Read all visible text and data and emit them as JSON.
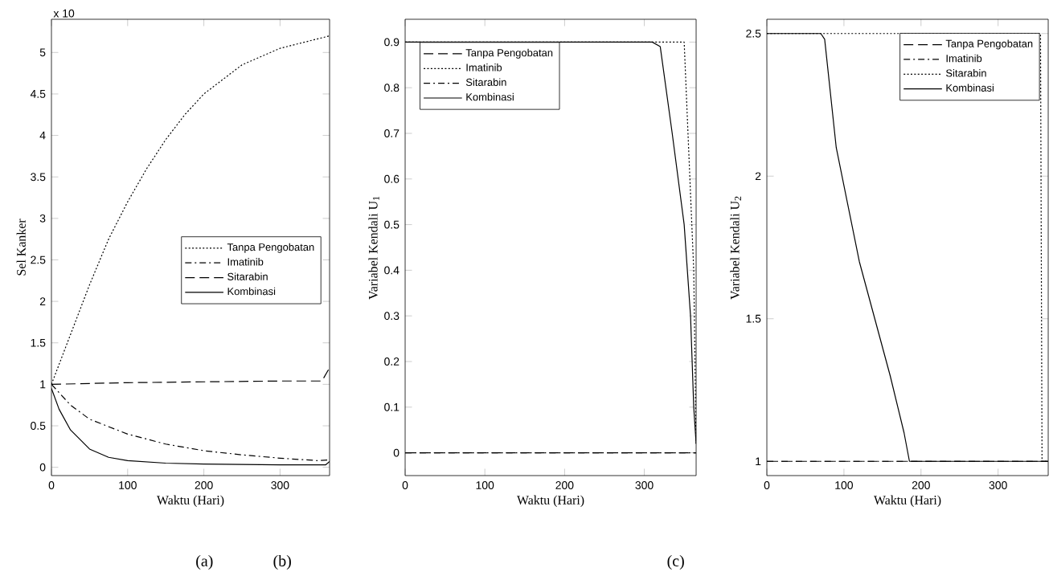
{
  "chart_data": [
    {
      "type": "line",
      "xlabel": "Waktu (Hari)",
      "ylabel": "Sel Kanker",
      "xlim": [
        0,
        365
      ],
      "ylim": [
        -0.1,
        5.4
      ],
      "xticks": [
        0,
        100,
        200,
        300
      ],
      "yticks": [
        0,
        0.5,
        1,
        1.5,
        2,
        2.5,
        3,
        3.5,
        4,
        4.5,
        5
      ],
      "legend": "right",
      "grid": false,
      "annotations": [
        "x 10",
        "(a)",
        "(b)"
      ],
      "series": [
        {
          "name": "Tanpa Pengobatan",
          "color": "#000000",
          "line_style": "dotted",
          "x": [
            0,
            25,
            50,
            75,
            100,
            125,
            150,
            175,
            200,
            250,
            300,
            365
          ],
          "values": [
            1,
            1.6,
            2.2,
            2.75,
            3.2,
            3.6,
            3.95,
            4.25,
            4.5,
            4.85,
            5.05,
            5.2
          ]
        },
        {
          "name": "Imatinib",
          "color": "#000000",
          "line_style": "dashdot",
          "x": [
            0,
            25,
            50,
            100,
            150,
            200,
            250,
            300,
            350,
            365
          ],
          "values": [
            1,
            0.75,
            0.58,
            0.4,
            0.28,
            0.2,
            0.15,
            0.11,
            0.08,
            0.09
          ]
        },
        {
          "name": "Sitarabin",
          "color": "#000000",
          "line_style": "dashed",
          "x": [
            0,
            100,
            200,
            300,
            355,
            365
          ],
          "values": [
            1,
            1.02,
            1.03,
            1.04,
            1.04,
            1.2
          ]
        },
        {
          "name": "Kombinasi",
          "color": "#000000",
          "line_style": "solid",
          "x": [
            0,
            10,
            25,
            50,
            75,
            100,
            150,
            200,
            300,
            360,
            365
          ],
          "values": [
            0.95,
            0.7,
            0.45,
            0.22,
            0.12,
            0.08,
            0.05,
            0.04,
            0.03,
            0.03,
            0.07
          ]
        }
      ]
    },
    {
      "type": "line",
      "xlabel": "Waktu (Hari)",
      "ylabel": "Variabel Kendali U$_{1}$",
      "xlim": [
        0,
        365
      ],
      "ylim": [
        -0.05,
        0.95
      ],
      "xticks": [
        0,
        100,
        200,
        300
      ],
      "yticks": [
        0,
        0.1,
        0.2,
        0.3,
        0.4,
        0.5,
        0.6,
        0.7,
        0.8,
        0.9
      ],
      "legend": "top left",
      "grid": false,
      "annotations": [
        "(c)"
      ],
      "series": [
        {
          "name": "Tanpa Pengobatan",
          "color": "#000000",
          "line_style": "dashed",
          "x": [
            0,
            365
          ],
          "values": [
            0,
            0
          ]
        },
        {
          "name": "Imatinib",
          "color": "#000000",
          "line_style": "dotted",
          "x": [
            0,
            310,
            350,
            362,
            365
          ],
          "values": [
            0.9,
            0.9,
            0.9,
            0.4,
            0.02
          ]
        },
        {
          "name": "Sitarabin",
          "color": "#000000",
          "line_style": "dashdot",
          "x": [
            0,
            365
          ],
          "values": [
            0,
            0
          ]
        },
        {
          "name": "Kombinasi",
          "color": "#000000",
          "line_style": "solid",
          "x": [
            0,
            310,
            320,
            335,
            350,
            358,
            362,
            365
          ],
          "values": [
            0.9,
            0.9,
            0.89,
            0.7,
            0.5,
            0.3,
            0.1,
            0.02
          ]
        }
      ]
    },
    {
      "type": "line",
      "xlabel": "Waktu (Hari)",
      "ylabel": "Variabel Kendali U$_{2}$",
      "xlim": [
        0,
        365
      ],
      "ylim": [
        0.95,
        2.55
      ],
      "xticks": [
        0,
        100,
        200,
        300
      ],
      "yticks": [
        1,
        1.5,
        2,
        2.5
      ],
      "legend": "top right",
      "grid": false,
      "series": [
        {
          "name": "Tanpa Pengobatan",
          "color": "#000000",
          "line_style": "dashed",
          "x": [
            0,
            365
          ],
          "values": [
            1,
            1
          ]
        },
        {
          "name": "Imatinib",
          "color": "#000000",
          "line_style": "dashdot",
          "x": [
            0,
            365
          ],
          "values": [
            1,
            1
          ]
        },
        {
          "name": "Sitarabin",
          "color": "#000000",
          "line_style": "dotted",
          "x": [
            0,
            355,
            357,
            365
          ],
          "values": [
            2.5,
            2.5,
            1,
            1
          ]
        },
        {
          "name": "Kombinasi",
          "color": "#000000",
          "line_style": "solid",
          "x": [
            0,
            70,
            75,
            90,
            105,
            120,
            140,
            160,
            178,
            185,
            365
          ],
          "values": [
            2.5,
            2.5,
            2.48,
            2.1,
            1.9,
            1.7,
            1.5,
            1.3,
            1.1,
            1.0,
            1.0
          ]
        }
      ]
    }
  ]
}
